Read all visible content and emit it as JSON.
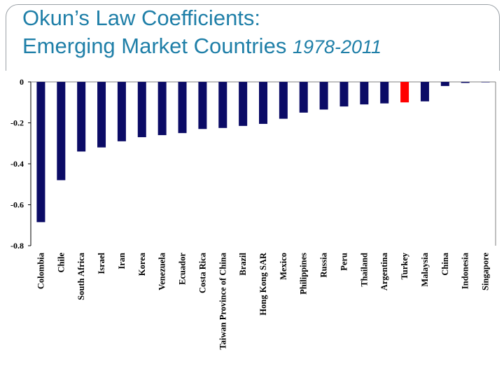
{
  "slide": {
    "title_line1": "Okun’s Law Coefficients:",
    "title_line2": "Emerging Market Countries",
    "title_years": "1978-2011"
  },
  "colors": {
    "title": "#1f7fa8",
    "bar": "#0b0b66",
    "highlight_bar": "#ff0000",
    "axis": "#000000"
  },
  "chart_data": {
    "type": "bar",
    "title": "Okun’s Law Coefficients: Emerging Market Countries 1978-2011",
    "xlabel": "",
    "ylabel": "",
    "ylim": [
      -0.8,
      0
    ],
    "yticks": [
      0,
      -0.2,
      -0.4,
      -0.6,
      -0.8
    ],
    "ytick_labels": [
      "0",
      "-0.2",
      "-0.4",
      "-0.6",
      "-0.8"
    ],
    "grid": false,
    "legend": "none",
    "highlight_category": "Turkey",
    "categories": [
      "Colombia",
      "Chile",
      "South Africa",
      "Israel",
      "Iran",
      "Korea",
      "Venezuela",
      "Ecuador",
      "Costa Rica",
      "Taiwan Province of China",
      "Brazil",
      "Hong Kong SAR",
      "Mexico",
      "Philippines",
      "Russia",
      "Peru",
      "Thailand",
      "Argentina",
      "Turkey",
      "Malaysia",
      "China",
      "Indonesia",
      "Singapore"
    ],
    "values": [
      -0.685,
      -0.48,
      -0.34,
      -0.32,
      -0.29,
      -0.27,
      -0.26,
      -0.25,
      -0.23,
      -0.225,
      -0.215,
      -0.205,
      -0.18,
      -0.15,
      -0.135,
      -0.12,
      -0.11,
      -0.105,
      -0.1,
      -0.095,
      -0.02,
      -0.005,
      -0.002
    ]
  }
}
